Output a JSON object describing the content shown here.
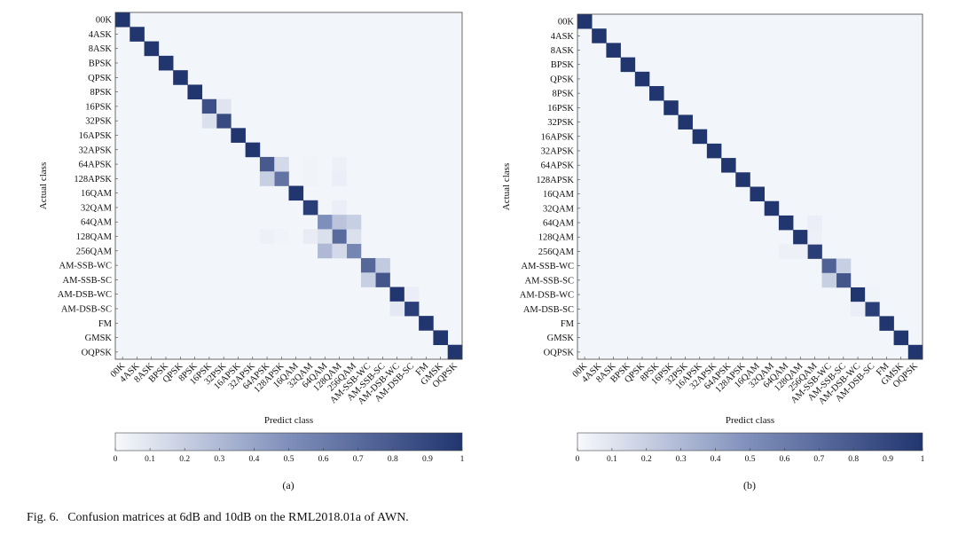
{
  "figure": {
    "caption_label": "Fig. 6.",
    "caption_text": "Confusion matrices at 6dB and 10dB on the RML2018.01a of AWN."
  },
  "chart_data": [
    {
      "type": "heatmap",
      "subfigure_label": "(a)",
      "xlabel": "Predict class",
      "ylabel": "Actual class",
      "classes": [
        "00K",
        "4ASK",
        "8ASK",
        "BPSK",
        "QPSK",
        "8PSK",
        "16PSK",
        "32PSK",
        "16APSK",
        "32APSK",
        "64APSK",
        "128APSK",
        "16QAM",
        "32QAM",
        "64QAM",
        "128QAM",
        "256QAM",
        "AM-SSB-WC",
        "AM-SSB-SC",
        "AM-DSB-WC",
        "AM-DSB-SC",
        "FM",
        "GMSK",
        "OQPSK"
      ],
      "colorbar": {
        "min": 0,
        "max": 1,
        "ticks": [
          "0",
          "0.1",
          "0.2",
          "0.3",
          "0.4",
          "0.5",
          "0.6",
          "0.7",
          "0.8",
          "0.9",
          "1"
        ]
      },
      "diagonal": [
        1,
        1,
        1,
        1,
        1,
        1,
        0.85,
        0.88,
        1,
        1,
        0.8,
        0.65,
        1,
        0.95,
        0.5,
        0.7,
        0.55,
        0.72,
        0.82,
        1,
        0.95,
        1,
        1,
        1
      ],
      "off_diagonal": [
        {
          "r": 6,
          "c": 7,
          "v": 0.1
        },
        {
          "r": 7,
          "c": 6,
          "v": 0.12
        },
        {
          "r": 10,
          "c": 11,
          "v": 0.15
        },
        {
          "r": 11,
          "c": 10,
          "v": 0.2
        },
        {
          "r": 10,
          "c": 13,
          "v": 0.03
        },
        {
          "r": 10,
          "c": 15,
          "v": 0.04
        },
        {
          "r": 11,
          "c": 13,
          "v": 0.03
        },
        {
          "r": 11,
          "c": 15,
          "v": 0.05
        },
        {
          "r": 13,
          "c": 10,
          "v": 0.02
        },
        {
          "r": 13,
          "c": 15,
          "v": 0.05
        },
        {
          "r": 14,
          "c": 15,
          "v": 0.25
        },
        {
          "r": 14,
          "c": 16,
          "v": 0.2
        },
        {
          "r": 15,
          "c": 10,
          "v": 0.04
        },
        {
          "r": 15,
          "c": 11,
          "v": 0.03
        },
        {
          "r": 15,
          "c": 13,
          "v": 0.06
        },
        {
          "r": 15,
          "c": 14,
          "v": 0.12
        },
        {
          "r": 15,
          "c": 16,
          "v": 0.12
        },
        {
          "r": 16,
          "c": 14,
          "v": 0.3
        },
        {
          "r": 16,
          "c": 15,
          "v": 0.15
        },
        {
          "r": 17,
          "c": 18,
          "v": 0.22
        },
        {
          "r": 18,
          "c": 17,
          "v": 0.2
        },
        {
          "r": 19,
          "c": 20,
          "v": 0.05
        },
        {
          "r": 20,
          "c": 19,
          "v": 0.08
        }
      ]
    },
    {
      "type": "heatmap",
      "subfigure_label": "(b)",
      "xlabel": "Predict class",
      "ylabel": "Actual class",
      "classes": [
        "00K",
        "4ASK",
        "8ASK",
        "BPSK",
        "QPSK",
        "8PSK",
        "16PSK",
        "32PSK",
        "16APSK",
        "32APSK",
        "64APSK",
        "128APSK",
        "16QAM",
        "32QAM",
        "64QAM",
        "128QAM",
        "256QAM",
        "AM-SSB-WC",
        "AM-SSB-SC",
        "AM-DSB-WC",
        "AM-DSB-SC",
        "FM",
        "GMSK",
        "OQPSK"
      ],
      "colorbar": {
        "min": 0,
        "max": 1,
        "ticks": [
          "0",
          "0.1",
          "0.2",
          "0.3",
          "0.4",
          "0.5",
          "0.6",
          "0.7",
          "0.8",
          "0.9",
          "1"
        ]
      },
      "diagonal": [
        1,
        1,
        1,
        1,
        1,
        1,
        1,
        1,
        1,
        1,
        1,
        1,
        1,
        1,
        1,
        1,
        0.95,
        0.75,
        0.82,
        1,
        0.95,
        1,
        1,
        1
      ],
      "off_diagonal": [
        {
          "r": 14,
          "c": 16,
          "v": 0.05
        },
        {
          "r": 15,
          "c": 16,
          "v": 0.04
        },
        {
          "r": 16,
          "c": 14,
          "v": 0.04
        },
        {
          "r": 16,
          "c": 15,
          "v": 0.04
        },
        {
          "r": 17,
          "c": 18,
          "v": 0.2
        },
        {
          "r": 18,
          "c": 17,
          "v": 0.2
        },
        {
          "r": 19,
          "c": 20,
          "v": 0.03
        },
        {
          "r": 20,
          "c": 19,
          "v": 0.05
        }
      ]
    }
  ]
}
